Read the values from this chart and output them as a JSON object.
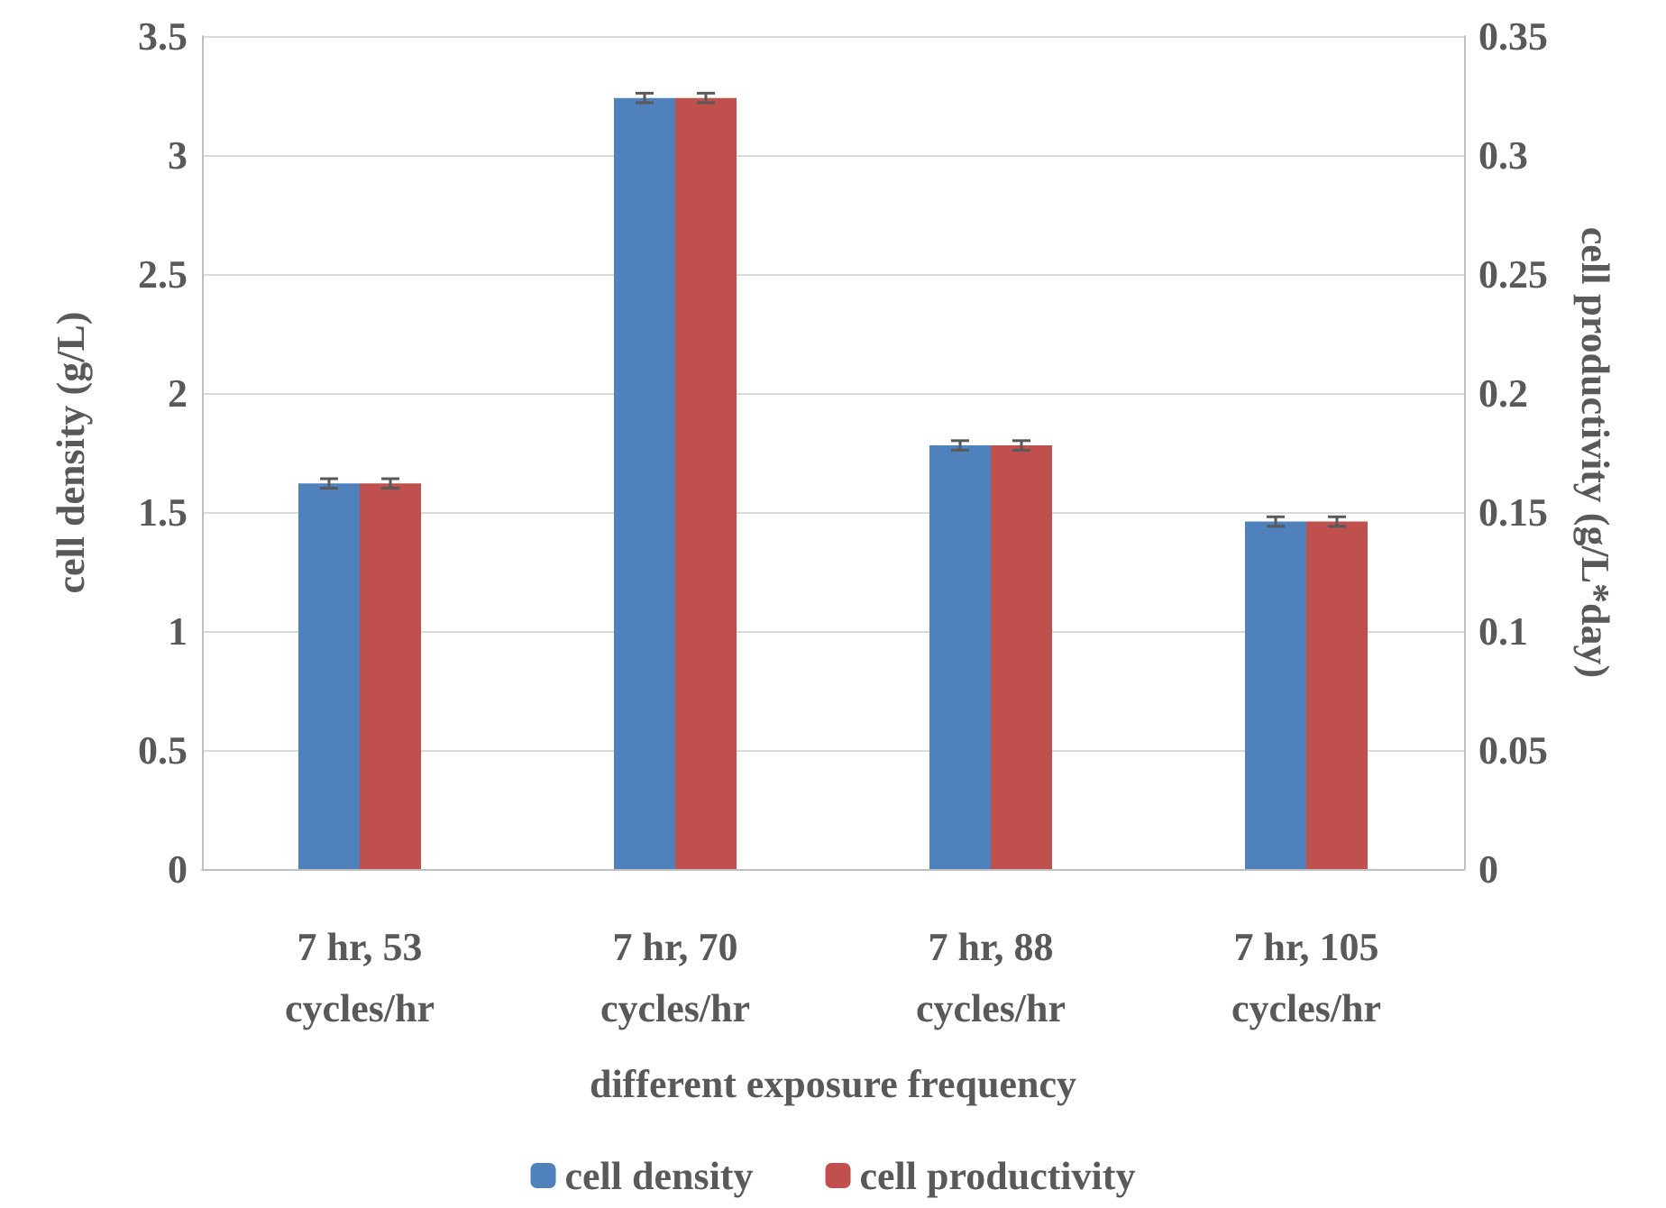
{
  "chart_data": {
    "type": "bar",
    "categories": [
      "7 hr, 53\ncycles/hr",
      "7 hr, 70\ncycles/hr",
      "7 hr, 88\ncycles/hr",
      "7 hr, 105\ncycles/hr"
    ],
    "xlabel": "different exposure frequency",
    "ylabel": "cell density (g/L)",
    "y2label": "cell productivity (g/L*day)",
    "series": [
      {
        "name": "cell density",
        "color": "#4f81bd",
        "values": [
          1.62,
          3.24,
          1.78,
          1.46
        ],
        "errors": [
          0.02,
          0.02,
          0.02,
          0.02
        ]
      },
      {
        "name": "cell productivity",
        "color": "#c0504d",
        "axis": "y2",
        "values": [
          0.162,
          0.324,
          0.178,
          0.146
        ],
        "errors": [
          0.002,
          0.002,
          0.002,
          0.002
        ]
      }
    ],
    "ylim": [
      0,
      3.5
    ],
    "yticks": [
      0,
      0.5,
      1,
      1.5,
      2,
      2.5,
      3,
      3.5
    ],
    "y2lim": [
      0,
      0.35
    ],
    "y2ticks": [
      0,
      0.05,
      0.1,
      0.15,
      0.2,
      0.25,
      0.3,
      0.35
    ],
    "grid": "y",
    "legend": "bottom"
  }
}
